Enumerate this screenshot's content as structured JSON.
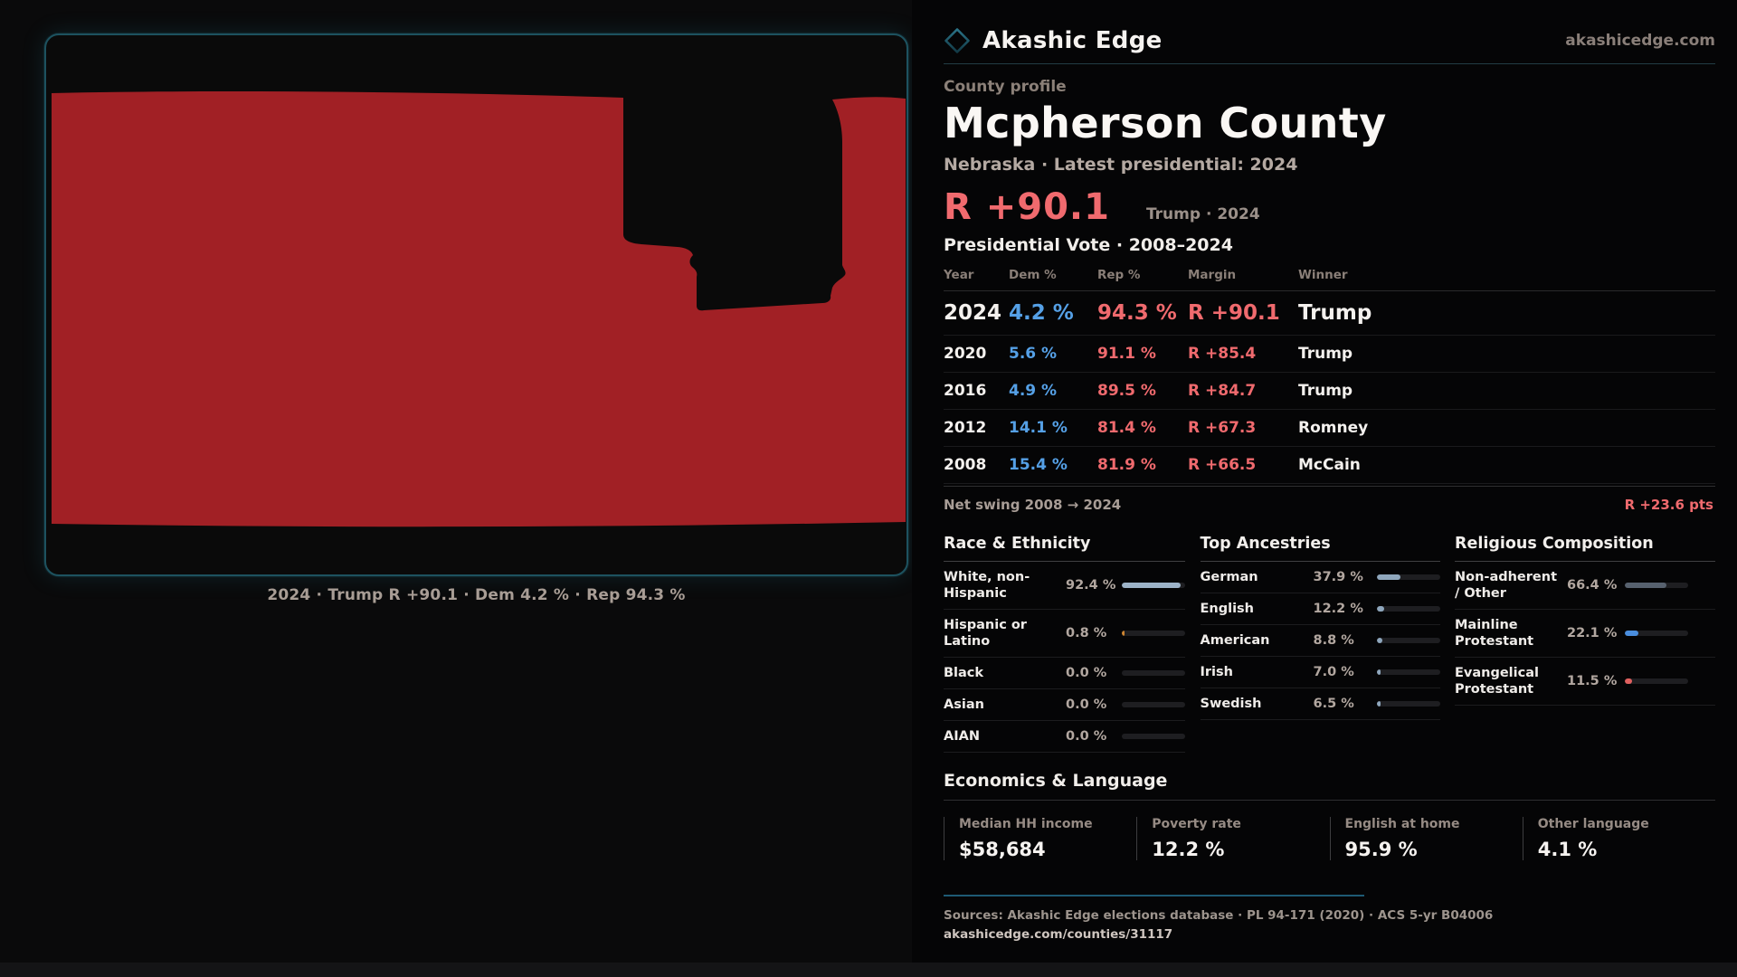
{
  "brand": {
    "name": "Akashic Edge",
    "domain": "akashicedge.com"
  },
  "map": {
    "caption": "2024 · Trump R +90.1 · Dem 4.2 % · Rep 94.3 %",
    "county_fill": "#a12025",
    "frame_color": "#1d525f"
  },
  "profile": {
    "eyebrow": "County profile",
    "title": "Mcpherson County",
    "subtitle": "Nebraska · Latest presidential: 2024",
    "headline_margin": "R +90.1",
    "headline_context": "Trump · 2024",
    "table_title": "Presidential Vote · 2008–2024"
  },
  "vote_table": {
    "columns": {
      "year": "Year",
      "dem": "Dem %",
      "rep": "Rep %",
      "margin": "Margin",
      "winner": "Winner"
    },
    "rows": [
      {
        "year": "2024",
        "dem": "4.2 %",
        "rep": "94.3 %",
        "margin": "R +90.1",
        "winner": "Trump"
      },
      {
        "year": "2020",
        "dem": "5.6 %",
        "rep": "91.1 %",
        "margin": "R +85.4",
        "winner": "Trump"
      },
      {
        "year": "2016",
        "dem": "4.9 %",
        "rep": "89.5 %",
        "margin": "R +84.7",
        "winner": "Trump"
      },
      {
        "year": "2012",
        "dem": "14.1 %",
        "rep": "81.4 %",
        "margin": "R +67.3",
        "winner": "Romney"
      },
      {
        "year": "2008",
        "dem": "15.4 %",
        "rep": "81.9 %",
        "margin": "R +66.5",
        "winner": "McCain"
      }
    ],
    "net_swing_label": "Net swing 2008 → 2024",
    "net_swing_value": "R +23.6 pts"
  },
  "demographics": {
    "race": {
      "title": "Race & Ethnicity",
      "rows": [
        {
          "label": "White, non-Hispanic",
          "value": "92.4 %",
          "pct": 92.4,
          "color": "#9db3c8"
        },
        {
          "label": "Hispanic or Latino",
          "value": "0.8 %",
          "pct": 0.8,
          "color": "#cd8531"
        },
        {
          "label": "Black",
          "value": "0.0 %",
          "pct": 0,
          "color": "#9db3c8"
        },
        {
          "label": "Asian",
          "value": "0.0 %",
          "pct": 0,
          "color": "#9db3c8"
        },
        {
          "label": "AIAN",
          "value": "0.0 %",
          "pct": 0,
          "color": "#9db3c8"
        }
      ]
    },
    "ancestries": {
      "title": "Top Ancestries",
      "rows": [
        {
          "label": "German",
          "value": "37.9 %",
          "pct": 37.9,
          "color": "#8fa7bd"
        },
        {
          "label": "English",
          "value": "12.2 %",
          "pct": 12.2,
          "color": "#8fa7bd"
        },
        {
          "label": "American",
          "value": "8.8 %",
          "pct": 8.8,
          "color": "#8fa7bd"
        },
        {
          "label": "Irish",
          "value": "7.0 %",
          "pct": 7.0,
          "color": "#8fa7bd"
        },
        {
          "label": "Swedish",
          "value": "6.5 %",
          "pct": 6.5,
          "color": "#8fa7bd"
        }
      ]
    },
    "religion": {
      "title": "Religious Composition",
      "rows": [
        {
          "label": "Non-adherent / Other",
          "value": "66.4 %",
          "pct": 66.4,
          "color": "#57616e"
        },
        {
          "label": "Mainline Protestant",
          "value": "22.1 %",
          "pct": 22.1,
          "color": "#4a8ede"
        },
        {
          "label": "Evangelical Protestant",
          "value": "11.5 %",
          "pct": 11.5,
          "color": "#e0605f"
        }
      ]
    }
  },
  "economics": {
    "title": "Economics & Language",
    "stats": [
      {
        "label": "Median HH income",
        "value": "$58,684"
      },
      {
        "label": "Poverty rate",
        "value": "12.2 %"
      },
      {
        "label": "English at home",
        "value": "95.9 %"
      },
      {
        "label": "Other language",
        "value": "4.1 %"
      }
    ]
  },
  "footer": {
    "sources": "Sources: Akashic Edge elections database · PL 94-171 (2020) · ACS 5-yr B04006",
    "permalink": "akashicedge.com/counties/31117"
  }
}
